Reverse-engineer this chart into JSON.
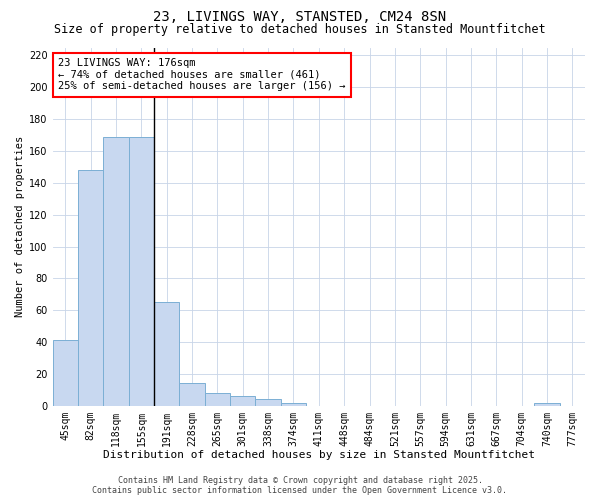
{
  "title": "23, LIVINGS WAY, STANSTED, CM24 8SN",
  "subtitle": "Size of property relative to detached houses in Stansted Mountfitchet",
  "xlabel": "Distribution of detached houses by size in Stansted Mountfitchet",
  "ylabel": "Number of detached properties",
  "categories": [
    "45sqm",
    "82sqm",
    "118sqm",
    "155sqm",
    "191sqm",
    "228sqm",
    "265sqm",
    "301sqm",
    "338sqm",
    "374sqm",
    "411sqm",
    "448sqm",
    "484sqm",
    "521sqm",
    "557sqm",
    "594sqm",
    "631sqm",
    "667sqm",
    "704sqm",
    "740sqm",
    "777sqm"
  ],
  "values": [
    41,
    148,
    169,
    169,
    65,
    14,
    8,
    6,
    4,
    2,
    0,
    0,
    0,
    0,
    0,
    0,
    0,
    0,
    0,
    2,
    0
  ],
  "bar_color": "#c8d8f0",
  "bar_edge_color": "#7bafd4",
  "annotation_text": "23 LIVINGS WAY: 176sqm\n← 74% of detached houses are smaller (461)\n25% of semi-detached houses are larger (156) →",
  "annotation_box_facecolor": "white",
  "annotation_box_edgecolor": "red",
  "vline_x": 3.5,
  "vline_color": "black",
  "ylim": [
    0,
    225
  ],
  "yticks": [
    0,
    20,
    40,
    60,
    80,
    100,
    120,
    140,
    160,
    180,
    200,
    220
  ],
  "bg_color": "white",
  "grid_color": "#c8d4e8",
  "footer_line1": "Contains HM Land Registry data © Crown copyright and database right 2025.",
  "footer_line2": "Contains public sector information licensed under the Open Government Licence v3.0.",
  "title_fontsize": 10,
  "subtitle_fontsize": 8.5,
  "xlabel_fontsize": 8,
  "ylabel_fontsize": 7.5,
  "tick_fontsize": 7,
  "annotation_fontsize": 7.5,
  "footer_fontsize": 6
}
